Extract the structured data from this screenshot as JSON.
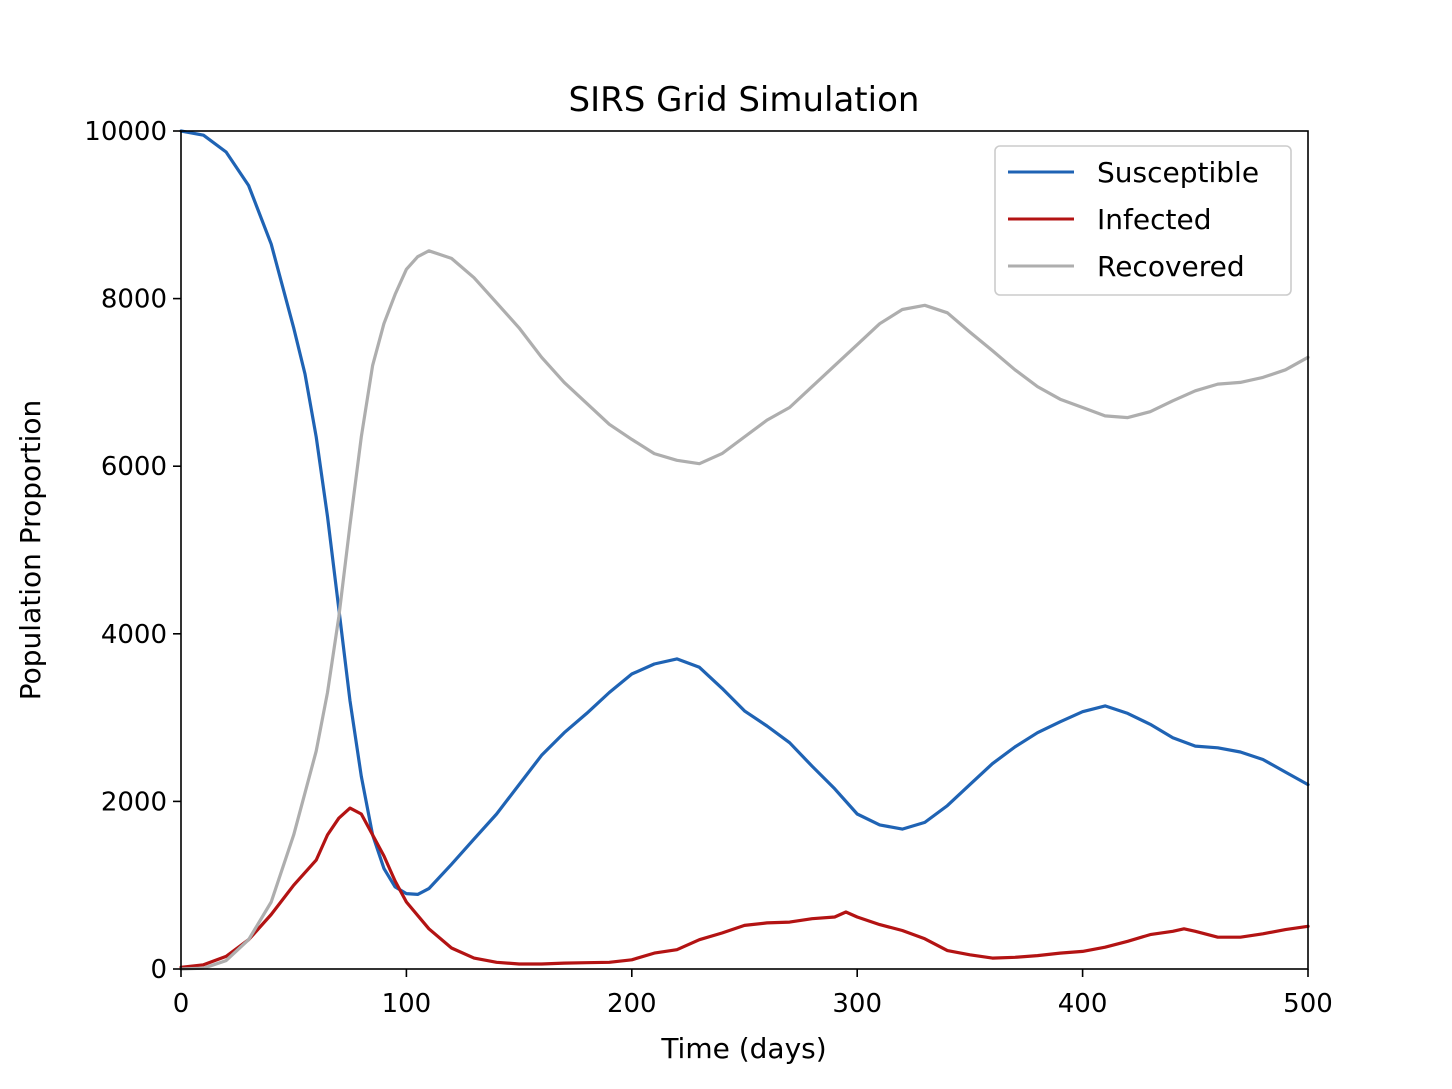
{
  "chart_data": {
    "type": "line",
    "title": "SIRS Grid Simulation",
    "xlabel": "Time (days)",
    "ylabel": "Population Proportion",
    "xlim": [
      0,
      500
    ],
    "ylim": [
      0,
      10000
    ],
    "xticks": [
      0,
      100,
      200,
      300,
      400,
      500
    ],
    "yticks": [
      0,
      2000,
      4000,
      6000,
      8000,
      10000
    ],
    "grid": false,
    "legend_position": "top-right",
    "series": [
      {
        "name": "Susceptible",
        "color": "#1f63b4",
        "points": [
          [
            0,
            10000
          ],
          [
            10,
            9950
          ],
          [
            20,
            9750
          ],
          [
            30,
            9350
          ],
          [
            40,
            8650
          ],
          [
            50,
            7650
          ],
          [
            55,
            7100
          ],
          [
            60,
            6350
          ],
          [
            65,
            5400
          ],
          [
            70,
            4300
          ],
          [
            75,
            3200
          ],
          [
            80,
            2300
          ],
          [
            85,
            1600
          ],
          [
            90,
            1200
          ],
          [
            95,
            980
          ],
          [
            100,
            900
          ],
          [
            105,
            890
          ],
          [
            110,
            960
          ],
          [
            120,
            1250
          ],
          [
            130,
            1550
          ],
          [
            140,
            1850
          ],
          [
            150,
            2200
          ],
          [
            160,
            2550
          ],
          [
            170,
            2820
          ],
          [
            180,
            3050
          ],
          [
            190,
            3300
          ],
          [
            200,
            3520
          ],
          [
            210,
            3640
          ],
          [
            220,
            3700
          ],
          [
            230,
            3600
          ],
          [
            240,
            3350
          ],
          [
            250,
            3080
          ],
          [
            260,
            2900
          ],
          [
            270,
            2700
          ],
          [
            280,
            2420
          ],
          [
            290,
            2150
          ],
          [
            300,
            1850
          ],
          [
            310,
            1720
          ],
          [
            320,
            1670
          ],
          [
            330,
            1750
          ],
          [
            340,
            1950
          ],
          [
            350,
            2200
          ],
          [
            360,
            2450
          ],
          [
            370,
            2650
          ],
          [
            380,
            2820
          ],
          [
            390,
            2950
          ],
          [
            400,
            3070
          ],
          [
            410,
            3140
          ],
          [
            420,
            3050
          ],
          [
            430,
            2920
          ],
          [
            440,
            2760
          ],
          [
            450,
            2660
          ],
          [
            460,
            2640
          ],
          [
            470,
            2590
          ],
          [
            480,
            2500
          ],
          [
            490,
            2350
          ],
          [
            500,
            2200
          ]
        ]
      },
      {
        "name": "Infected",
        "color": "#b31313",
        "points": [
          [
            0,
            20
          ],
          [
            10,
            50
          ],
          [
            20,
            150
          ],
          [
            30,
            350
          ],
          [
            40,
            650
          ],
          [
            50,
            1000
          ],
          [
            60,
            1300
          ],
          [
            65,
            1600
          ],
          [
            70,
            1800
          ],
          [
            75,
            1920
          ],
          [
            80,
            1850
          ],
          [
            85,
            1600
          ],
          [
            90,
            1350
          ],
          [
            95,
            1050
          ],
          [
            100,
            800
          ],
          [
            110,
            480
          ],
          [
            120,
            250
          ],
          [
            130,
            130
          ],
          [
            140,
            80
          ],
          [
            150,
            60
          ],
          [
            160,
            60
          ],
          [
            170,
            70
          ],
          [
            180,
            75
          ],
          [
            190,
            80
          ],
          [
            200,
            110
          ],
          [
            210,
            190
          ],
          [
            220,
            230
          ],
          [
            230,
            350
          ],
          [
            240,
            430
          ],
          [
            250,
            520
          ],
          [
            260,
            550
          ],
          [
            270,
            560
          ],
          [
            280,
            600
          ],
          [
            290,
            620
          ],
          [
            295,
            680
          ],
          [
            300,
            620
          ],
          [
            310,
            530
          ],
          [
            320,
            460
          ],
          [
            330,
            360
          ],
          [
            340,
            220
          ],
          [
            350,
            170
          ],
          [
            360,
            130
          ],
          [
            370,
            140
          ],
          [
            380,
            160
          ],
          [
            390,
            190
          ],
          [
            400,
            210
          ],
          [
            410,
            260
          ],
          [
            420,
            330
          ],
          [
            430,
            410
          ],
          [
            440,
            450
          ],
          [
            445,
            480
          ],
          [
            450,
            450
          ],
          [
            460,
            380
          ],
          [
            470,
            380
          ],
          [
            480,
            420
          ],
          [
            490,
            470
          ],
          [
            500,
            510
          ]
        ]
      },
      {
        "name": "Recovered",
        "color": "#aeaeae",
        "points": [
          [
            0,
            0
          ],
          [
            10,
            10
          ],
          [
            20,
            100
          ],
          [
            30,
            350
          ],
          [
            40,
            800
          ],
          [
            50,
            1600
          ],
          [
            60,
            2600
          ],
          [
            65,
            3300
          ],
          [
            70,
            4200
          ],
          [
            75,
            5300
          ],
          [
            80,
            6350
          ],
          [
            85,
            7200
          ],
          [
            90,
            7700
          ],
          [
            95,
            8050
          ],
          [
            100,
            8350
          ],
          [
            105,
            8500
          ],
          [
            110,
            8570
          ],
          [
            120,
            8480
          ],
          [
            130,
            8250
          ],
          [
            140,
            7950
          ],
          [
            150,
            7650
          ],
          [
            160,
            7300
          ],
          [
            170,
            7000
          ],
          [
            180,
            6750
          ],
          [
            190,
            6500
          ],
          [
            200,
            6320
          ],
          [
            210,
            6150
          ],
          [
            220,
            6070
          ],
          [
            230,
            6030
          ],
          [
            240,
            6150
          ],
          [
            250,
            6350
          ],
          [
            260,
            6550
          ],
          [
            270,
            6700
          ],
          [
            280,
            6950
          ],
          [
            290,
            7200
          ],
          [
            300,
            7450
          ],
          [
            310,
            7700
          ],
          [
            320,
            7870
          ],
          [
            330,
            7920
          ],
          [
            340,
            7830
          ],
          [
            350,
            7600
          ],
          [
            360,
            7380
          ],
          [
            370,
            7150
          ],
          [
            380,
            6950
          ],
          [
            390,
            6800
          ],
          [
            400,
            6700
          ],
          [
            410,
            6600
          ],
          [
            420,
            6580
          ],
          [
            430,
            6650
          ],
          [
            440,
            6780
          ],
          [
            450,
            6900
          ],
          [
            460,
            6980
          ],
          [
            470,
            7000
          ],
          [
            480,
            7060
          ],
          [
            490,
            7150
          ],
          [
            500,
            7300
          ]
        ]
      }
    ]
  }
}
